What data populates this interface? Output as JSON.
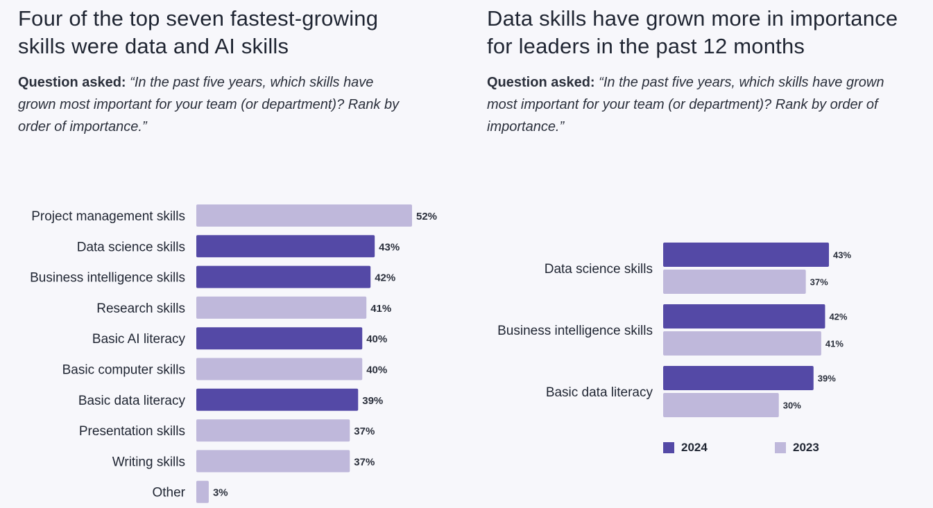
{
  "colors": {
    "highlight": "#5449a6",
    "base": "#bfb8db",
    "text": "#1f2532"
  },
  "left": {
    "title_line1": "Four of the top seven fastest-growing",
    "title_line2": "skills were data and AI skills",
    "question_label": "Question asked:",
    "question_text": "“In the past five years, which skills have grown most important for your team (or department)? Rank by order of importance.”"
  },
  "right": {
    "title_line1": "Data skills have grown more in importance",
    "title_line2": "for leaders in the past 12 months",
    "question_label": "Question asked:",
    "question_text": "“In the past five years, which skills have grown most important for your team (or department)? Rank by order of importance.”",
    "legend": [
      {
        "label": "2024",
        "color": "#5449a6"
      },
      {
        "label": "2023",
        "color": "#bfb8db"
      }
    ]
  },
  "chart_data": [
    {
      "type": "bar",
      "orientation": "horizontal",
      "title": "Four of the top seven fastest-growing skills were data and AI skills",
      "categories": [
        "Project management skills",
        "Data science skills",
        "Business intelligence skills",
        "Research skills",
        "Basic AI literacy",
        "Basic computer skills",
        "Basic data literacy",
        "Presentation skills",
        "Writing skills",
        "Other"
      ],
      "values": [
        52,
        43,
        42,
        41,
        40,
        40,
        39,
        37,
        37,
        3
      ],
      "value_labels": [
        "52%",
        "43%",
        "42%",
        "41%",
        "40%",
        "40%",
        "39%",
        "37%",
        "37%",
        "3%"
      ],
      "highlighted": [
        false,
        true,
        true,
        false,
        true,
        false,
        true,
        false,
        false,
        false
      ],
      "unit": "%",
      "xlim": [
        0,
        52
      ]
    },
    {
      "type": "bar",
      "orientation": "horizontal",
      "title": "Data skills have grown more in importance for leaders in the past 12 months",
      "categories": [
        "Data science skills",
        "Business intelligence skills",
        "Basic data literacy"
      ],
      "series": [
        {
          "name": "2024",
          "values": [
            43,
            42,
            39
          ],
          "value_labels": [
            "43%",
            "42%",
            "39%"
          ]
        },
        {
          "name": "2023",
          "values": [
            37,
            41,
            30
          ],
          "value_labels": [
            "37%",
            "41%",
            "30%"
          ]
        }
      ],
      "unit": "%",
      "legend": "bottom",
      "xlim": [
        0,
        43
      ]
    }
  ]
}
